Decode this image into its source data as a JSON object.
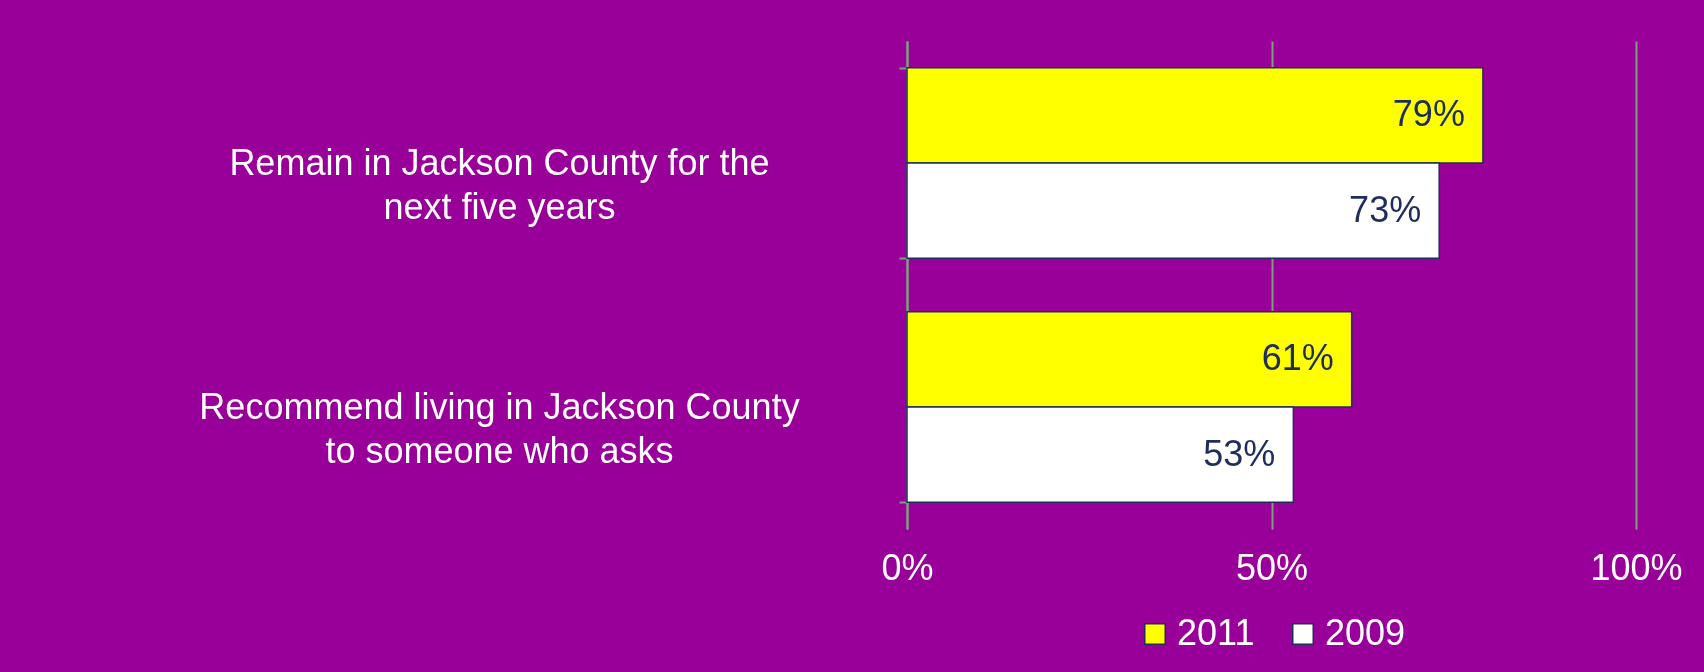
{
  "chart_data": {
    "type": "bar",
    "orientation": "horizontal",
    "categories": [
      "Remain in Jackson County for the next five years",
      "Recommend living in Jackson County to someone who asks"
    ],
    "series": [
      {
        "name": "2011",
        "color": "#ffff00",
        "values": [
          79,
          61
        ],
        "value_labels": [
          "79%",
          "61%"
        ]
      },
      {
        "name": "2009",
        "color": "#ffffff",
        "values": [
          73,
          53
        ],
        "value_labels": [
          "73%",
          "53%"
        ]
      }
    ],
    "xlim": [
      0,
      100
    ],
    "xticks": [
      {
        "value": 0,
        "label": "0%"
      },
      {
        "value": 50,
        "label": "50%"
      },
      {
        "value": 100,
        "label": "100%"
      }
    ],
    "grid": "x",
    "legend": "bottom"
  }
}
